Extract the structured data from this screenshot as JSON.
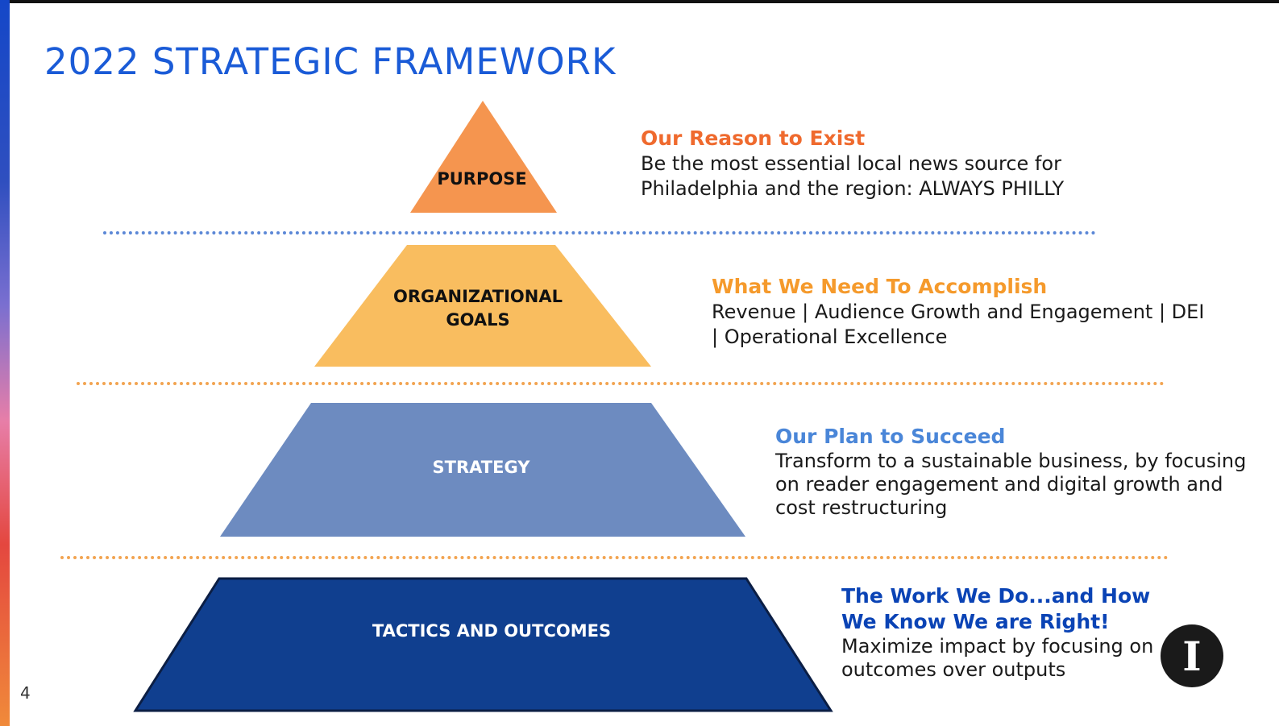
{
  "slide": {
    "title": "2022 STRATEGIC FRAMEWORK",
    "page_number": "4",
    "logo_text": "I"
  },
  "colors": {
    "title": "#1a5bd7",
    "purpose": "#f5954f",
    "goals": "#f9bd5f",
    "strategy": "#6d8bc0",
    "tactics": "#103f8f",
    "divider_blue": "#5b87d6",
    "divider_orange": "#f2a451"
  },
  "tiers": [
    {
      "label": "PURPOSE",
      "heading": "Our Reason to Exist",
      "description": "Be the most essential local news source for Philadelphia and the region: ALWAYS PHILLY"
    },
    {
      "label": "ORGANIZATIONAL GOALS",
      "heading": "What We Need To Accomplish",
      "description": "Revenue | Audience Growth and Engagement | DEI | Operational Excellence"
    },
    {
      "label": "STRATEGY",
      "heading": "Our Plan to Succeed",
      "description": "Transform to a sustainable business, by focusing on reader engagement and digital growth and cost restructuring"
    },
    {
      "label": "TACTICS AND OUTCOMES",
      "heading": "The Work We Do...and How We Know We are Right!",
      "description": "Maximize impact by focusing on outcomes over outputs"
    }
  ]
}
